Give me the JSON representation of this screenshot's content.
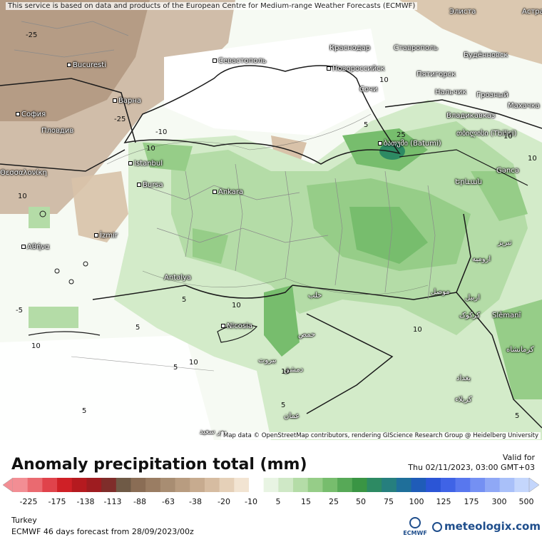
{
  "map": {
    "attribution_top": "This service is based on data and products of the European Centre for Medium-range Weather Forecasts (ECMWF)",
    "attribution_bottom": "Map data © OpenStreetMap contributors, rendering GIScience Research Group @ Heidelberg University",
    "cities": [
      {
        "name": "Bucuresti"
      },
      {
        "name": "Варна"
      },
      {
        "name": "София"
      },
      {
        "name": "Пловдив"
      },
      {
        "name": "Θεσσαλονίκη"
      },
      {
        "name": "Istanbul"
      },
      {
        "name": "Bursa"
      },
      {
        "name": "Ankara"
      },
      {
        "name": "İzmir"
      },
      {
        "name": "Αθήνα"
      },
      {
        "name": "Antalya"
      },
      {
        "name": "Nicosia"
      },
      {
        "name": "Севастополь"
      },
      {
        "name": "Краснодар"
      },
      {
        "name": "Новороссийск"
      },
      {
        "name": "Сочи"
      },
      {
        "name": "Ставрополь"
      },
      {
        "name": "Пятигорск"
      },
      {
        "name": "Нальчик"
      },
      {
        "name": "Грозный"
      },
      {
        "name": "Владикавказ"
      },
      {
        "name": "Будённовск"
      },
      {
        "name": "Махачка"
      },
      {
        "name": "Элиста"
      },
      {
        "name": "Астра"
      },
      {
        "name": "ბათუმი (Batumi)"
      },
      {
        "name": "თბილისი (Tbilisi)"
      },
      {
        "name": "Gəncə"
      },
      {
        "name": "Երևան"
      },
      {
        "name": "تبریز"
      },
      {
        "name": "ارومیه"
      },
      {
        "name": "موصل"
      },
      {
        "name": "اربیل"
      },
      {
        "name": "کرکوک"
      },
      {
        "name": "Slêmanî"
      },
      {
        "name": "کرمانشاه"
      },
      {
        "name": "بغداد"
      },
      {
        "name": "کربلاء"
      },
      {
        "name": "حلب"
      },
      {
        "name": "حمص"
      },
      {
        "name": "دمشق"
      },
      {
        "name": "بيروت"
      },
      {
        "name": "عمان"
      },
      {
        "name": "بور سعيد"
      }
    ],
    "contour_labels": [
      "-25",
      "-25",
      "-10",
      "10",
      "10",
      "5",
      "25",
      "10",
      "10",
      "10",
      "5",
      "-5",
      "10",
      "10",
      "5",
      "5",
      "10",
      "10",
      "10",
      "5",
      "5",
      "5"
    ]
  },
  "legend": {
    "title": "Anomaly precipitation total (mm)",
    "valid_label": "Valid for",
    "valid_time": "Thu 02/11/2023, 03:00 GMT+03",
    "region": "Turkey",
    "model_line": "ECMWF 46 days forecast from  28/09/2023/00z",
    "ecmwf_logo_text": "ECMWF",
    "brand_text": "meteologix.com",
    "ticks": [
      "-225",
      "-175",
      "-138",
      "-113",
      "-88",
      "-63",
      "-38",
      "-20",
      "-10",
      "5",
      "15",
      "25",
      "50",
      "75",
      "100",
      "125",
      "175",
      "300",
      "500"
    ],
    "colors": [
      "#f28e94",
      "#ea6a70",
      "#e0434b",
      "#cf2026",
      "#b51a1f",
      "#9e1c20",
      "#7f2d2a",
      "#6f5a46",
      "#8a6d55",
      "#9a7d63",
      "#a88d72",
      "#b89c80",
      "#c7ab8f",
      "#d6bca1",
      "#e5d0b8",
      "#f2e4d2",
      "#ffffff",
      "#e8f4e3",
      "#cfe8c6",
      "#b4dca7",
      "#96cd88",
      "#77bd6d",
      "#57a957",
      "#3a9544",
      "#2d8a63",
      "#267f7e",
      "#1f6f9a",
      "#1f5cb8",
      "#2b55d6",
      "#3f63e6",
      "#5877ee",
      "#7490f3",
      "#8fa8f6",
      "#a9c0f9",
      "#c4d6fc"
    ]
  },
  "colors": {
    "border_country": "#1a1a1a",
    "border_province": "#8a8a8a"
  }
}
